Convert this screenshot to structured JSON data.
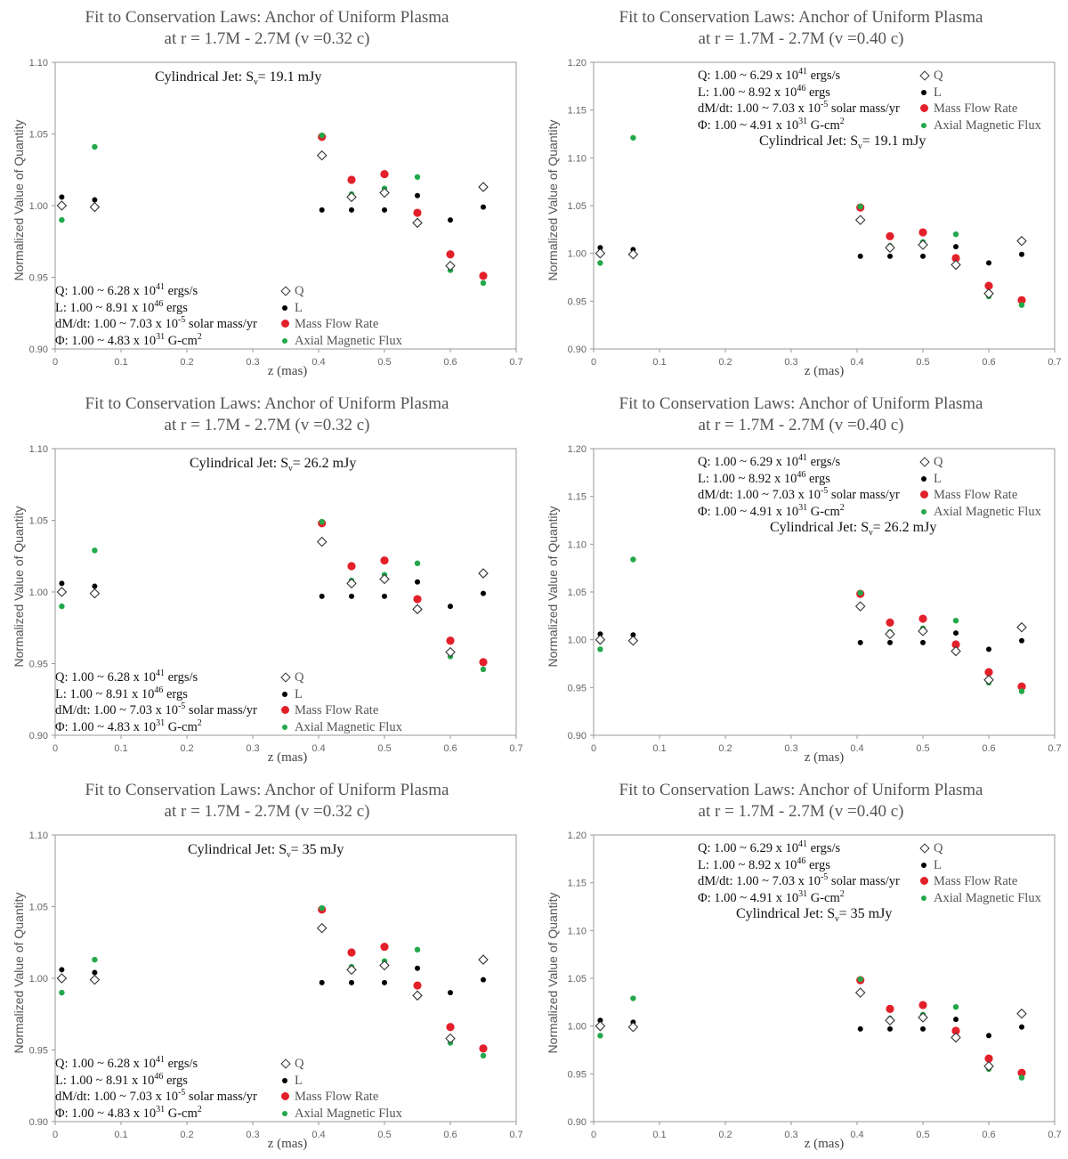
{
  "info_left": {
    "q": [
      "Q: 1.00 ~ 6.28 x 10",
      "41",
      " ergs/s"
    ],
    "l": [
      "L: 1.00 ~ 8.91 x 10",
      "46",
      " ergs"
    ],
    "m": [
      "dM/dt: 1.00 ~ 7.03 x 10",
      "-5",
      " solar mass/yr"
    ],
    "p": [
      "Φ: 1.00 ~ 4.83 x 10",
      "31",
      " G-cm",
      "2"
    ]
  },
  "info_right": {
    "q": [
      "Q: 1.00 ~ 6.29 x 10",
      "41",
      " ergs/s"
    ],
    "l": [
      "L: 1.00 ~ 8.92 x 10",
      "46",
      " ergs"
    ],
    "m": [
      "dM/dt: 1.00 ~ 7.03 x 10",
      "-5",
      " solar mass/yr"
    ],
    "p": [
      "Φ: 1.00 ~ 4.91 x 10",
      "31",
      " G-cm",
      "2"
    ]
  },
  "legend": {
    "q": "Q",
    "l": "L",
    "m_left": "Mass Flow  Rate",
    "m_right": "Mass Flow Rate",
    "a": "Axial Magnetic Flux"
  },
  "colors": {
    "q": "#333333",
    "l": "#000000",
    "m": "#e3202a",
    "a": "#22a84a",
    "axis": "#999999"
  },
  "chart_data": [
    {
      "type": "scatter",
      "title": "Fit to Conservation Laws: Anchor of Uniform Plasma",
      "subtitle": "at r = 1.7M - 2.7M (v =0.32 c)",
      "xlabel": "z (mas)",
      "ylabel": "Normalized Value of Quantity",
      "jet_label": [
        "Cylindrical Jet: S",
        "ν",
        "= 19.1 mJy"
      ],
      "xlim": [
        0,
        0.7
      ],
      "ylim": [
        0.9,
        1.1
      ],
      "x_ticks": [
        "0",
        "0.1",
        "0.2",
        "0.3",
        "0.4",
        "0.5",
        "0.6",
        "0.7"
      ],
      "y_ticks": [
        "0.90",
        "0.95",
        "1.00",
        "1.05",
        "1.10"
      ],
      "series": [
        {
          "name": "Q",
          "x": [
            0.01,
            0.06,
            0.405,
            0.45,
            0.5,
            0.55,
            0.6,
            0.65
          ],
          "values": [
            1.0,
            0.999,
            1.035,
            1.006,
            1.009,
            0.988,
            0.958,
            1.013
          ]
        },
        {
          "name": "L",
          "x": [
            0.01,
            0.06,
            0.405,
            0.45,
            0.5,
            0.55,
            0.6,
            0.65
          ],
          "values": [
            1.006,
            1.004,
            0.997,
            0.997,
            0.997,
            1.007,
            0.99,
            0.999
          ]
        },
        {
          "name": "Mass Flow Rate",
          "x": [
            0.405,
            0.45,
            0.5,
            0.55,
            0.6,
            0.65
          ],
          "values": [
            1.048,
            1.018,
            1.022,
            0.995,
            0.966,
            0.951
          ]
        },
        {
          "name": "Axial Magnetic Flux",
          "x": [
            0.01,
            0.06,
            0.405,
            0.45,
            0.5,
            0.55,
            0.6,
            0.65
          ],
          "values": [
            0.99,
            1.041,
            1.049,
            1.008,
            1.012,
            1.02,
            0.955,
            0.946
          ]
        }
      ]
    },
    {
      "type": "scatter",
      "title": "Fit to Conservation Laws: Anchor of Uniform Plasma",
      "subtitle": "at r = 1.7M - 2.7M (v =0.40 c)",
      "xlabel": "z (mas)",
      "ylabel": "Normalized Value of Quantity",
      "jet_label": [
        "Cylindrical Jet: S",
        "ν",
        "= 19.1 mJy"
      ],
      "xlim": [
        0,
        0.7
      ],
      "ylim": [
        0.9,
        1.2
      ],
      "x_ticks": [
        "0",
        "0.1",
        "0.2",
        "0.3",
        "0.4",
        "0.5",
        "0.6",
        "0.7"
      ],
      "y_ticks": [
        "0.90",
        "0.95",
        "1.00",
        "1.05",
        "1.10",
        "1.15",
        "1.20"
      ],
      "series": [
        {
          "name": "Q",
          "x": [
            0.01,
            0.06,
            0.405,
            0.45,
            0.5,
            0.55,
            0.6,
            0.65
          ],
          "values": [
            1.0,
            0.999,
            1.035,
            1.006,
            1.009,
            0.988,
            0.958,
            1.013
          ]
        },
        {
          "name": "L",
          "x": [
            0.01,
            0.06,
            0.405,
            0.45,
            0.5,
            0.55,
            0.6,
            0.65
          ],
          "values": [
            1.006,
            1.004,
            0.997,
            0.997,
            0.997,
            1.007,
            0.99,
            0.999
          ]
        },
        {
          "name": "Mass Flow Rate",
          "x": [
            0.405,
            0.45,
            0.5,
            0.55,
            0.6,
            0.65
          ],
          "values": [
            1.048,
            1.018,
            1.022,
            0.995,
            0.966,
            0.951
          ]
        },
        {
          "name": "Axial Magnetic Flux",
          "x": [
            0.01,
            0.06,
            0.405,
            0.45,
            0.5,
            0.55,
            0.6,
            0.65
          ],
          "values": [
            0.99,
            1.121,
            1.049,
            1.008,
            1.012,
            1.02,
            0.955,
            0.946
          ]
        }
      ]
    },
    {
      "type": "scatter",
      "title": "Fit to Conservation Laws: Anchor of Uniform Plasma",
      "subtitle": "at r = 1.7M - 2.7M (v =0.32 c)",
      "xlabel": "z (mas)",
      "ylabel": "Normalized Value of Quantity",
      "jet_label": [
        "Cylindrical Jet: S",
        "ν",
        "= 26.2 mJy"
      ],
      "xlim": [
        0,
        0.7
      ],
      "ylim": [
        0.9,
        1.1
      ],
      "x_ticks": [
        "0",
        "0.1",
        "0.2",
        "0.3",
        "0.4",
        "0.5",
        "0.6",
        "0.7"
      ],
      "y_ticks": [
        "0.90",
        "0.95",
        "1.00",
        "1.05",
        "1.10"
      ],
      "series": [
        {
          "name": "Q",
          "x": [
            0.01,
            0.06,
            0.405,
            0.45,
            0.5,
            0.55,
            0.6,
            0.65
          ],
          "values": [
            1.0,
            0.999,
            1.035,
            1.006,
            1.009,
            0.988,
            0.958,
            1.013
          ]
        },
        {
          "name": "L",
          "x": [
            0.01,
            0.06,
            0.405,
            0.45,
            0.5,
            0.55,
            0.6,
            0.65
          ],
          "values": [
            1.006,
            1.004,
            0.997,
            0.997,
            0.997,
            1.007,
            0.99,
            0.999
          ]
        },
        {
          "name": "Mass Flow Rate",
          "x": [
            0.405,
            0.45,
            0.5,
            0.55,
            0.6,
            0.65
          ],
          "values": [
            1.048,
            1.018,
            1.022,
            0.995,
            0.966,
            0.951
          ]
        },
        {
          "name": "Axial Magnetic Flux",
          "x": [
            0.01,
            0.06,
            0.405,
            0.45,
            0.5,
            0.55,
            0.6,
            0.65
          ],
          "values": [
            0.99,
            1.029,
            1.049,
            1.008,
            1.012,
            1.02,
            0.955,
            0.946
          ]
        }
      ]
    },
    {
      "type": "scatter",
      "title": "Fit to Conservation Laws: Anchor of Uniform Plasma",
      "subtitle": "at r = 1.7M - 2.7M (v =0.40 c)",
      "xlabel": "z (mas)",
      "ylabel": "Normalized Value of Quantity",
      "jet_label": [
        "Cylindrical Jet: S",
        "ν",
        "= 26.2 mJy"
      ],
      "xlim": [
        0,
        0.7
      ],
      "ylim": [
        0.9,
        1.2
      ],
      "x_ticks": [
        "0",
        "0.1",
        "0.2",
        "0.3",
        "0.4",
        "0.5",
        "0.6",
        "0.7"
      ],
      "y_ticks": [
        "0.90",
        "0.95",
        "1.00",
        "1.05",
        "1.10",
        "1.15",
        "1.20"
      ],
      "series": [
        {
          "name": "Q",
          "x": [
            0.01,
            0.06,
            0.405,
            0.45,
            0.5,
            0.55,
            0.6,
            0.65
          ],
          "values": [
            1.0,
            0.999,
            1.035,
            1.006,
            1.009,
            0.988,
            0.958,
            1.013
          ]
        },
        {
          "name": "L",
          "x": [
            0.01,
            0.06,
            0.405,
            0.45,
            0.5,
            0.55,
            0.6,
            0.65
          ],
          "values": [
            1.006,
            1.005,
            0.997,
            0.997,
            0.997,
            1.007,
            0.99,
            0.999
          ]
        },
        {
          "name": "Mass Flow Rate",
          "x": [
            0.405,
            0.45,
            0.5,
            0.55,
            0.6,
            0.65
          ],
          "values": [
            1.048,
            1.018,
            1.022,
            0.995,
            0.966,
            0.951
          ]
        },
        {
          "name": "Axial Magnetic Flux",
          "x": [
            0.01,
            0.06,
            0.405,
            0.45,
            0.5,
            0.55,
            0.6,
            0.65
          ],
          "values": [
            0.99,
            1.084,
            1.049,
            1.008,
            1.012,
            1.02,
            0.955,
            0.946
          ]
        }
      ]
    },
    {
      "type": "scatter",
      "title": "Fit to Conservation Laws: Anchor of Uniform Plasma",
      "subtitle": "at r = 1.7M - 2.7M (v =0.32 c)",
      "xlabel": "z (mas)",
      "ylabel": "Normalized Value of Quantity",
      "jet_label": [
        "Cylindrical Jet: S",
        "ν",
        "= 35 mJy"
      ],
      "xlim": [
        0,
        0.7
      ],
      "ylim": [
        0.9,
        1.1
      ],
      "x_ticks": [
        "0",
        "0.1",
        "0.2",
        "0.3",
        "0.4",
        "0.5",
        "0.6",
        "0.7"
      ],
      "y_ticks": [
        "0.90",
        "0.95",
        "1.00",
        "1.05",
        "1.10"
      ],
      "series": [
        {
          "name": "Q",
          "x": [
            0.01,
            0.06,
            0.405,
            0.45,
            0.5,
            0.55,
            0.6,
            0.65
          ],
          "values": [
            1.0,
            0.999,
            1.035,
            1.006,
            1.009,
            0.988,
            0.958,
            1.013
          ]
        },
        {
          "name": "L",
          "x": [
            0.01,
            0.06,
            0.405,
            0.45,
            0.5,
            0.55,
            0.6,
            0.65
          ],
          "values": [
            1.006,
            1.004,
            0.997,
            0.997,
            0.997,
            1.007,
            0.99,
            0.999
          ]
        },
        {
          "name": "Mass Flow Rate",
          "x": [
            0.405,
            0.45,
            0.5,
            0.55,
            0.6,
            0.65
          ],
          "values": [
            1.048,
            1.018,
            1.022,
            0.995,
            0.966,
            0.951
          ]
        },
        {
          "name": "Axial Magnetic Flux",
          "x": [
            0.01,
            0.06,
            0.405,
            0.45,
            0.5,
            0.55,
            0.6,
            0.65
          ],
          "values": [
            0.99,
            1.013,
            1.049,
            1.008,
            1.012,
            1.02,
            0.955,
            0.946
          ]
        }
      ]
    },
    {
      "type": "scatter",
      "title": "Fit to Conservation Laws: Anchor of Uniform Plasma",
      "subtitle": "at r = 1.7M - 2.7M (v =0.40 c)",
      "xlabel": "z (mas)",
      "ylabel": "Normalized Value of Quantity",
      "jet_label": [
        "Cylindrical Jet: S",
        "ν",
        "= 35 mJy"
      ],
      "xlim": [
        0,
        0.7
      ],
      "ylim": [
        0.9,
        1.2
      ],
      "x_ticks": [
        "0",
        "0.1",
        "0.2",
        "0.3",
        "0.4",
        "0.5",
        "0.6",
        "0.7"
      ],
      "y_ticks": [
        "0.90",
        "0.95",
        "1.00",
        "1.05",
        "1.10",
        "1.15",
        "1.20"
      ],
      "series": [
        {
          "name": "Q",
          "x": [
            0.01,
            0.06,
            0.405,
            0.45,
            0.5,
            0.55,
            0.6,
            0.65
          ],
          "values": [
            1.0,
            0.999,
            1.035,
            1.006,
            1.009,
            0.988,
            0.958,
            1.013
          ]
        },
        {
          "name": "L",
          "x": [
            0.01,
            0.06,
            0.405,
            0.45,
            0.5,
            0.55,
            0.6,
            0.65
          ],
          "values": [
            1.006,
            1.004,
            0.997,
            0.997,
            0.997,
            1.007,
            0.99,
            0.999
          ]
        },
        {
          "name": "Mass Flow Rate",
          "x": [
            0.405,
            0.45,
            0.5,
            0.55,
            0.6,
            0.65
          ],
          "values": [
            1.048,
            1.018,
            1.022,
            0.995,
            0.966,
            0.951
          ]
        },
        {
          "name": "Axial Magnetic Flux",
          "x": [
            0.01,
            0.06,
            0.405,
            0.45,
            0.5,
            0.55,
            0.6,
            0.65
          ],
          "values": [
            0.99,
            1.029,
            1.049,
            1.008,
            1.012,
            1.02,
            0.955,
            0.946
          ]
        }
      ]
    }
  ]
}
